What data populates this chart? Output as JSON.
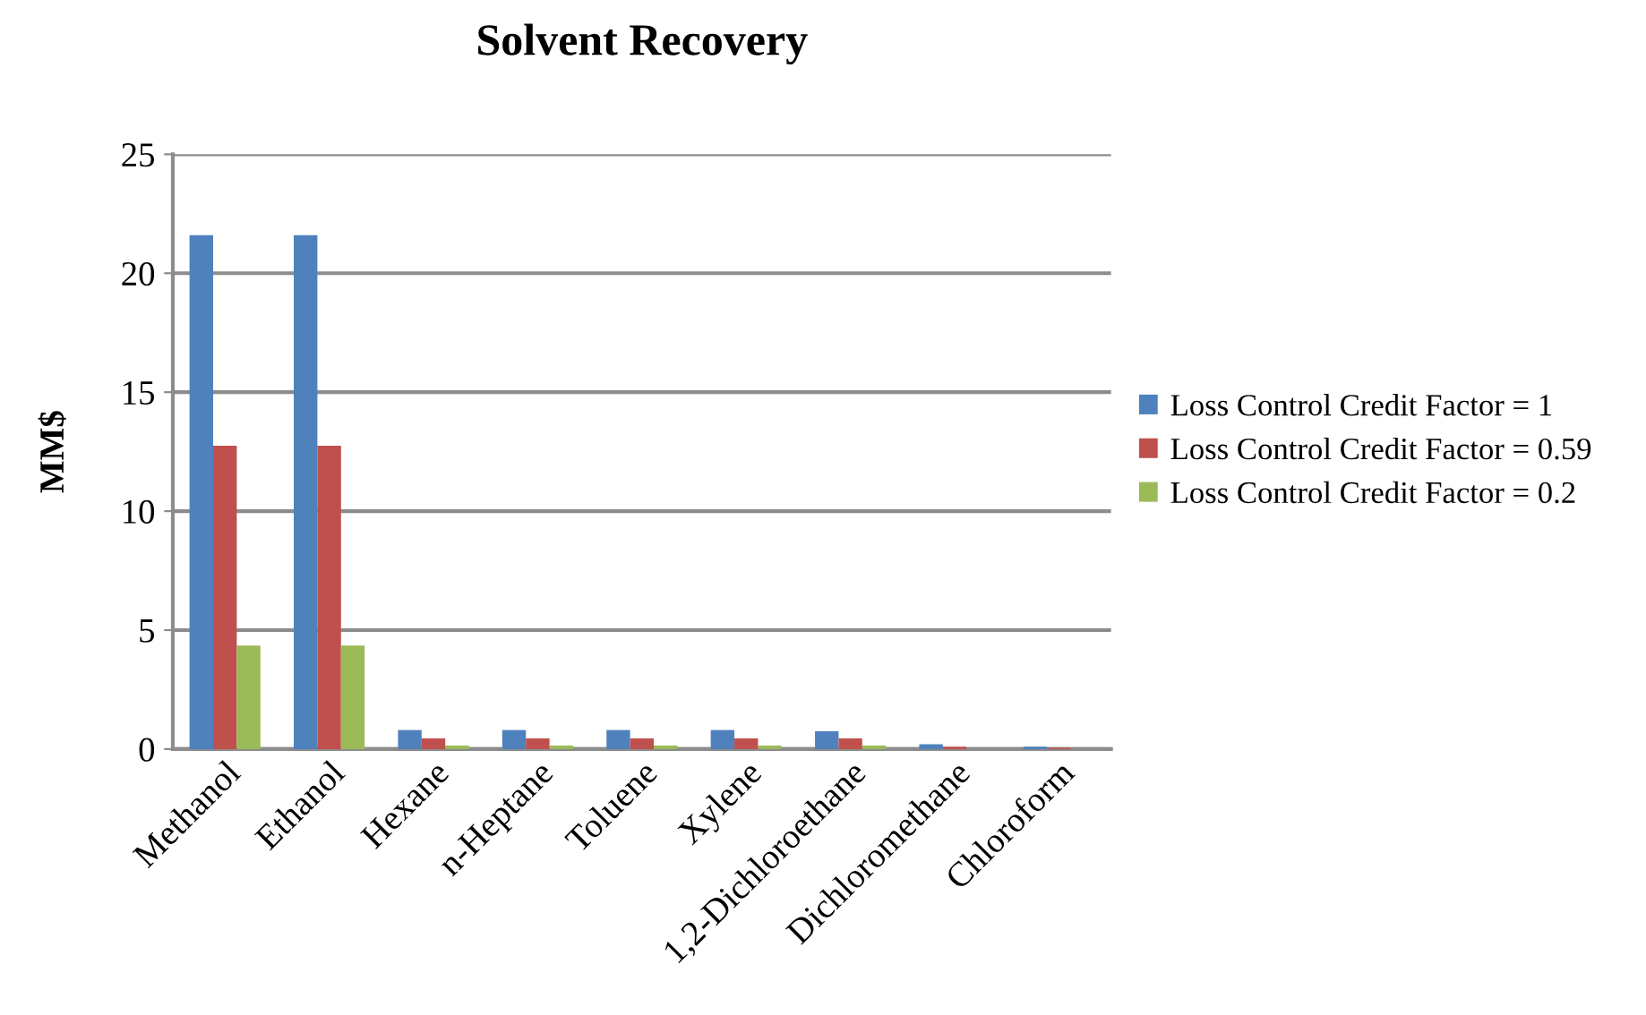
{
  "chart_data": {
    "type": "bar",
    "title": "Solvent Recovery",
    "ylabel": "MM$",
    "categories": [
      "Methanol",
      "Ethanol",
      "Hexane",
      "n-Heptane",
      "Toluene",
      "Xylene",
      "1,2-Dichloroethane",
      "Dichloromethane",
      "Chloroform"
    ],
    "series": [
      {
        "name": "Loss Control Credit Factor = 1",
        "color": "#4f81bd",
        "values": [
          21.6,
          21.6,
          0.8,
          0.8,
          0.8,
          0.8,
          0.75,
          0.2,
          0.1
        ]
      },
      {
        "name": "Loss Control Credit Factor = 0.59",
        "color": "#c0504d",
        "values": [
          12.75,
          12.75,
          0.45,
          0.45,
          0.45,
          0.45,
          0.45,
          0.1,
          0.05
        ]
      },
      {
        "name": "Loss Control Credit Factor = 0.2",
        "color": "#9bbb59",
        "values": [
          4.35,
          4.35,
          0.15,
          0.15,
          0.15,
          0.15,
          0.15,
          null,
          null
        ]
      }
    ],
    "ylim": [
      0,
      25
    ],
    "yticks": [
      0,
      5,
      10,
      15,
      20,
      25
    ],
    "grid": "y",
    "legend": "right"
  }
}
